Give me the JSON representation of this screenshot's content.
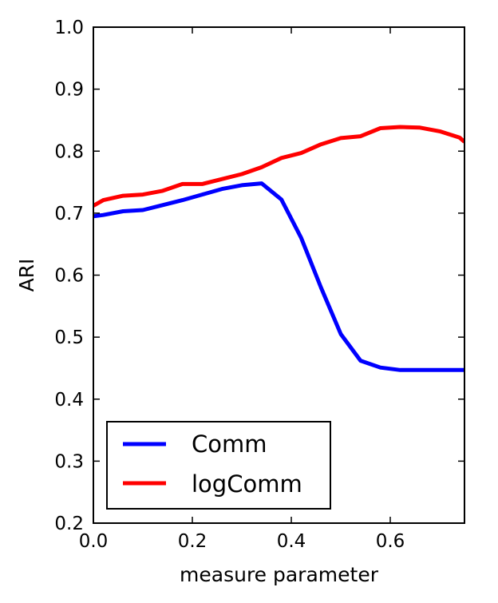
{
  "chart_data": {
    "type": "line",
    "title": "",
    "xlabel": "measure parameter",
    "ylabel": "ARI",
    "xlim": [
      0.0,
      0.75
    ],
    "ylim": [
      0.2,
      1.0
    ],
    "xticks": [
      0.0,
      0.2,
      0.4,
      0.6
    ],
    "xtick_labels": [
      "0.0",
      "0.2",
      "0.4",
      "0.6"
    ],
    "yticks": [
      0.2,
      0.3,
      0.4,
      0.5,
      0.6,
      0.7,
      0.8,
      0.9,
      1.0
    ],
    "ytick_labels": [
      "0.2",
      "0.3",
      "0.4",
      "0.5",
      "0.6",
      "0.7",
      "0.8",
      "0.9",
      "1.0"
    ],
    "grid": false,
    "legend": "bottom-left",
    "series": [
      {
        "name": "Comm",
        "color": "#0000ff",
        "x": [
          0.0,
          0.02,
          0.06,
          0.1,
          0.14,
          0.18,
          0.22,
          0.26,
          0.3,
          0.34,
          0.38,
          0.42,
          0.46,
          0.5,
          0.54,
          0.58,
          0.62,
          0.66,
          0.7,
          0.75
        ],
        "y": [
          0.695,
          0.697,
          0.703,
          0.705,
          0.713,
          0.721,
          0.73,
          0.739,
          0.745,
          0.748,
          0.722,
          0.66,
          0.58,
          0.505,
          0.462,
          0.451,
          0.447,
          0.447,
          0.447,
          0.447
        ]
      },
      {
        "name": "logComm",
        "color": "#ff0000",
        "x": [
          0.0,
          0.02,
          0.06,
          0.1,
          0.14,
          0.18,
          0.22,
          0.26,
          0.3,
          0.34,
          0.38,
          0.42,
          0.46,
          0.5,
          0.54,
          0.58,
          0.62,
          0.66,
          0.7,
          0.74,
          0.75
        ],
        "y": [
          0.712,
          0.721,
          0.728,
          0.73,
          0.736,
          0.747,
          0.747,
          0.755,
          0.763,
          0.774,
          0.789,
          0.797,
          0.811,
          0.821,
          0.824,
          0.837,
          0.839,
          0.838,
          0.832,
          0.822,
          0.815
        ]
      }
    ]
  }
}
